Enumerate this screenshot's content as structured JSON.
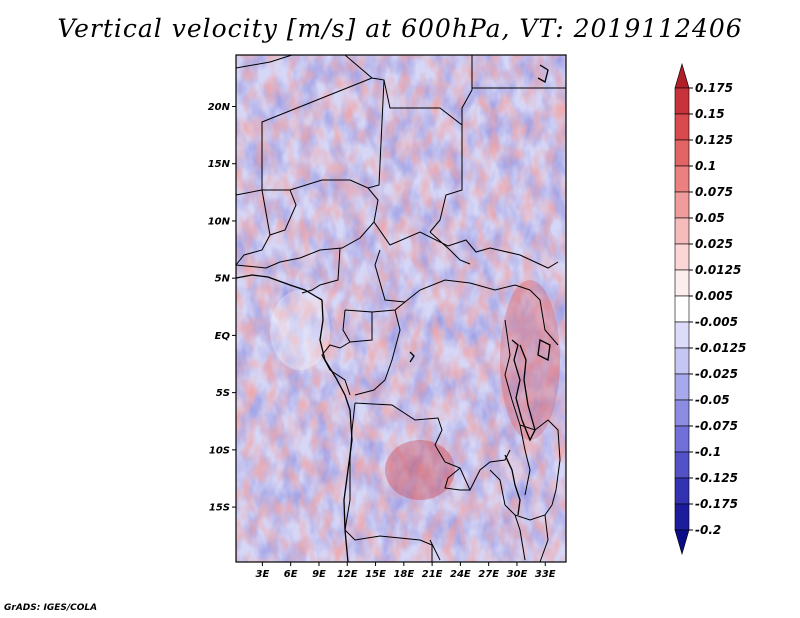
{
  "title": "Vertical velocity [m/s] at 600hPa, VT: 2019112406",
  "credit": "GrADS: IGES/COLA",
  "map": {
    "lat_labels": [
      {
        "label": "20N",
        "lat": 20
      },
      {
        "label": "15N",
        "lat": 15
      },
      {
        "label": "10N",
        "lat": 10
      },
      {
        "label": "5N",
        "lat": 5
      },
      {
        "label": "EQ",
        "lat": 0
      },
      {
        "label": "5S",
        "lat": -5
      },
      {
        "label": "10S",
        "lat": -10
      },
      {
        "label": "15S",
        "lat": -15
      }
    ],
    "lon_labels": [
      {
        "label": "3E",
        "lon": 3
      },
      {
        "label": "6E",
        "lon": 6
      },
      {
        "label": "9E",
        "lon": 9
      },
      {
        "label": "12E",
        "lon": 12
      },
      {
        "label": "15E",
        "lon": 15
      },
      {
        "label": "18E",
        "lon": 18
      },
      {
        "label": "21E",
        "lon": 21
      },
      {
        "label": "24E",
        "lon": 24
      },
      {
        "label": "27E",
        "lon": 27
      },
      {
        "label": "30E",
        "lon": 30
      },
      {
        "label": "33E",
        "lon": 33
      }
    ],
    "lon_range": [
      0.2,
      35.2
    ],
    "lat_range": [
      -19.8,
      24.5
    ]
  },
  "colorbar": {
    "labels": [
      "0.175",
      "0.15",
      "0.125",
      "0.1",
      "0.075",
      "0.05",
      "0.025",
      "0.0125",
      "0.005",
      "-0.005",
      "-0.0125",
      "-0.025",
      "-0.05",
      "-0.075",
      "-0.1",
      "-0.125",
      "-0.175",
      "-0.2"
    ],
    "colors": [
      "#b01e28",
      "#c8323a",
      "#d84a4e",
      "#e26464",
      "#ea8080",
      "#f09c9c",
      "#f6bcbc",
      "#fad6d6",
      "#fdeeee",
      "#ffffff",
      "#dcdcfa",
      "#c6c6f4",
      "#a8a8ec",
      "#8c8ce2",
      "#7070d8",
      "#5252c6",
      "#3232b2",
      "#1c1c9c",
      "#0c0c86"
    ]
  }
}
